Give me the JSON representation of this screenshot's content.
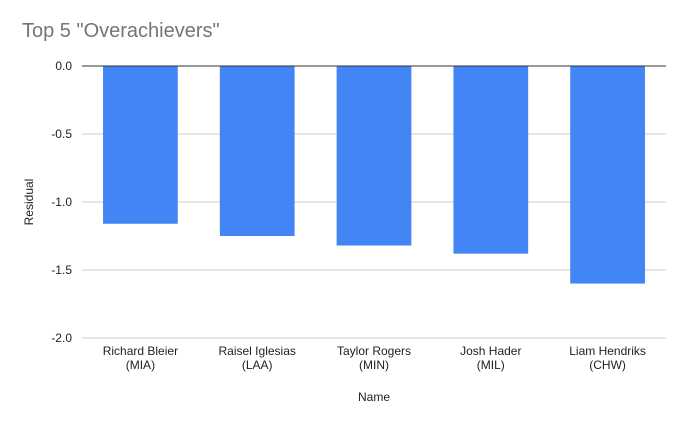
{
  "chart_data": {
    "type": "bar",
    "title": "Top 5 \"Overachievers\"",
    "xlabel": "Name",
    "ylabel": "Residual",
    "categories": [
      [
        "Richard Bleier",
        "(MIA)"
      ],
      [
        "Raisel Iglesias",
        "(LAA)"
      ],
      [
        "Taylor Rogers",
        "(MIN)"
      ],
      [
        "Josh Hader",
        "(MIL)"
      ],
      [
        "Liam Hendriks",
        "(CHW)"
      ]
    ],
    "values": [
      -1.16,
      -1.25,
      -1.32,
      -1.38,
      -1.6
    ],
    "ylim": [
      -2.0,
      0.0
    ],
    "yticks": [
      "0.0",
      "-0.5",
      "-1.0",
      "-1.5",
      "-2.0"
    ],
    "grid": true,
    "legend": "none",
    "colors": {
      "bar": "#4285f4",
      "grid": "#cccccc",
      "axis": "#333333",
      "text": "#222222",
      "title": "#757575"
    }
  }
}
